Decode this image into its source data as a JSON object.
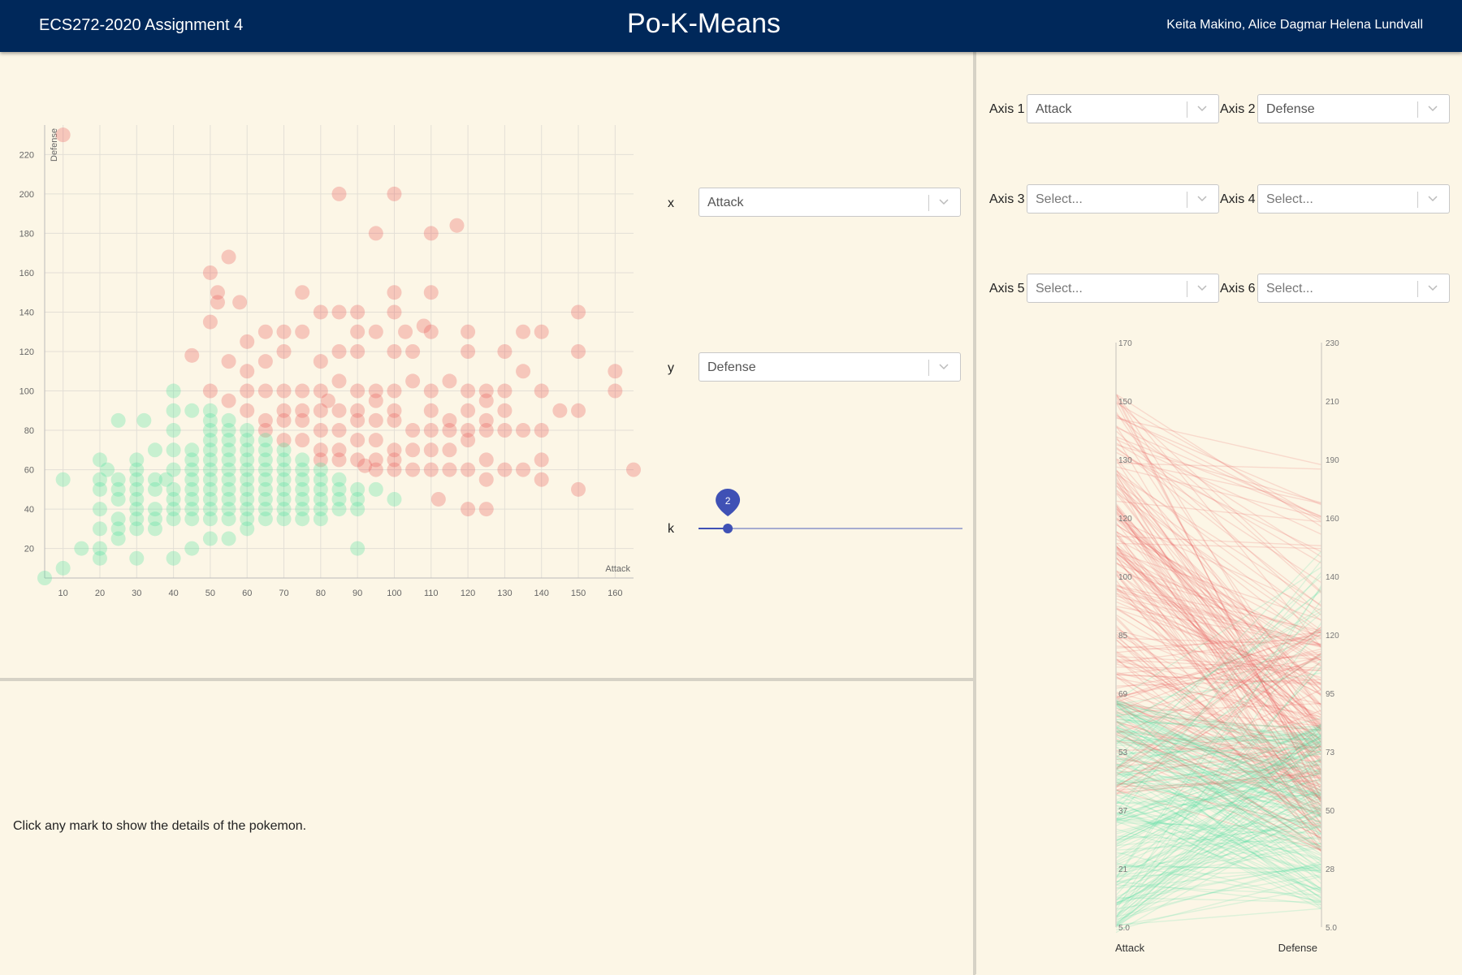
{
  "header": {
    "course": "ECS272-2020 Assignment 4",
    "title": "Po-K-Means",
    "authors": "Keita Makino, Alice Dagmar Helena Lundvall"
  },
  "controls": {
    "x_label": "x",
    "x_value": "Attack",
    "y_label": "y",
    "y_value": "Defense",
    "k_label": "k",
    "k_value": "2",
    "k_fraction": 0.111
  },
  "axes": [
    {
      "label": "Axis 1",
      "value": "Attack"
    },
    {
      "label": "Axis 2",
      "value": "Defense"
    },
    {
      "label": "Axis 3",
      "value": "Select..."
    },
    {
      "label": "Axis 4",
      "value": "Select..."
    },
    {
      "label": "Axis 5",
      "value": "Select..."
    },
    {
      "label": "Axis 6",
      "value": "Select..."
    }
  ],
  "details": {
    "hint": "Click any mark to show the details of the pokemon."
  },
  "colors": {
    "cluster_a": "#e85b5b",
    "cluster_b": "#4fe0a0",
    "header_bg": "#00285a",
    "slider": "#3f51b5"
  },
  "chart_data": [
    {
      "type": "scatter",
      "title": "",
      "xlabel": "Attack",
      "ylabel": "Defense",
      "xticks": [
        "10",
        "20",
        "30",
        "40",
        "50",
        "60",
        "70",
        "80",
        "90",
        "100",
        "110",
        "120",
        "130",
        "140",
        "150",
        "160"
      ],
      "yticks": [
        "20",
        "40",
        "60",
        "80",
        "100",
        "120",
        "140",
        "160",
        "180",
        "200",
        "220"
      ],
      "xlim": [
        5,
        165
      ],
      "ylim": [
        5,
        235
      ],
      "series": [
        {
          "name": "cluster 1",
          "color": "#e85b5b",
          "points": [
            [
              10,
              230
            ],
            [
              85,
              200
            ],
            [
              100,
              200
            ],
            [
              95,
              180
            ],
            [
              110,
              180
            ],
            [
              117,
              184
            ],
            [
              55,
              168
            ],
            [
              50,
              160
            ],
            [
              52,
              150
            ],
            [
              52,
              145
            ],
            [
              58,
              145
            ],
            [
              75,
              150
            ],
            [
              100,
              150
            ],
            [
              110,
              150
            ],
            [
              50,
              135
            ],
            [
              45,
              118
            ],
            [
              60,
              125
            ],
            [
              65,
              130
            ],
            [
              70,
              130
            ],
            [
              75,
              130
            ],
            [
              80,
              140
            ],
            [
              85,
              140
            ],
            [
              90,
              140
            ],
            [
              90,
              130
            ],
            [
              95,
              130
            ],
            [
              100,
              140
            ],
            [
              103,
              130
            ],
            [
              108,
              133
            ],
            [
              110,
              130
            ],
            [
              120,
              130
            ],
            [
              135,
              130
            ],
            [
              140,
              130
            ],
            [
              150,
              140
            ],
            [
              150,
              120
            ],
            [
              130,
              120
            ],
            [
              120,
              120
            ],
            [
              105,
              120
            ],
            [
              100,
              120
            ],
            [
              90,
              120
            ],
            [
              85,
              120
            ],
            [
              80,
              115
            ],
            [
              70,
              120
            ],
            [
              65,
              115
            ],
            [
              60,
              110
            ],
            [
              55,
              115
            ],
            [
              50,
              100
            ],
            [
              55,
              95
            ],
            [
              60,
              100
            ],
            [
              65,
              100
            ],
            [
              70,
              100
            ],
            [
              75,
              100
            ],
            [
              80,
              100
            ],
            [
              82,
              95
            ],
            [
              85,
              105
            ],
            [
              90,
              100
            ],
            [
              95,
              100
            ],
            [
              100,
              100
            ],
            [
              105,
              105
            ],
            [
              110,
              100
            ],
            [
              115,
              105
            ],
            [
              120,
              100
            ],
            [
              125,
              100
            ],
            [
              130,
              100
            ],
            [
              135,
              110
            ],
            [
              140,
              100
            ],
            [
              145,
              90
            ],
            [
              150,
              90
            ],
            [
              160,
              100
            ],
            [
              160,
              110
            ],
            [
              165,
              60
            ],
            [
              125,
              95
            ],
            [
              120,
              90
            ],
            [
              115,
              85
            ],
            [
              110,
              90
            ],
            [
              100,
              90
            ],
            [
              95,
              95
            ],
            [
              90,
              90
            ],
            [
              85,
              90
            ],
            [
              80,
              90
            ],
            [
              75,
              90
            ],
            [
              70,
              90
            ],
            [
              65,
              85
            ],
            [
              60,
              90
            ],
            [
              70,
              85
            ],
            [
              75,
              85
            ],
            [
              80,
              80
            ],
            [
              85,
              80
            ],
            [
              90,
              85
            ],
            [
              95,
              85
            ],
            [
              100,
              85
            ],
            [
              105,
              80
            ],
            [
              110,
              80
            ],
            [
              115,
              80
            ],
            [
              120,
              80
            ],
            [
              125,
              80
            ],
            [
              130,
              80
            ],
            [
              135,
              80
            ],
            [
              140,
              80
            ],
            [
              130,
              90
            ],
            [
              125,
              85
            ],
            [
              120,
              75
            ],
            [
              115,
              70
            ],
            [
              110,
              70
            ],
            [
              105,
              70
            ],
            [
              100,
              70
            ],
            [
              95,
              75
            ],
            [
              90,
              75
            ],
            [
              85,
              70
            ],
            [
              80,
              70
            ],
            [
              75,
              75
            ],
            [
              70,
              75
            ],
            [
              65,
              80
            ],
            [
              100,
              65
            ],
            [
              95,
              65
            ],
            [
              90,
              65
            ],
            [
              85,
              65
            ],
            [
              80,
              65
            ],
            [
              105,
              60
            ],
            [
              110,
              60
            ],
            [
              115,
              60
            ],
            [
              120,
              60
            ],
            [
              125,
              65
            ],
            [
              130,
              60
            ],
            [
              135,
              60
            ],
            [
              140,
              65
            ],
            [
              140,
              55
            ],
            [
              150,
              50
            ],
            [
              125,
              55
            ],
            [
              120,
              40
            ],
            [
              125,
              40
            ],
            [
              112,
              45
            ],
            [
              100,
              60
            ],
            [
              95,
              60
            ],
            [
              92,
              62
            ]
          ]
        },
        {
          "name": "cluster 2",
          "color": "#4fe0a0",
          "points": [
            [
              5,
              5
            ],
            [
              10,
              10
            ],
            [
              10,
              55
            ],
            [
              15,
              20
            ],
            [
              20,
              15
            ],
            [
              20,
              30
            ],
            [
              20,
              40
            ],
            [
              20,
              50
            ],
            [
              20,
              55
            ],
            [
              20,
              65
            ],
            [
              22,
              60
            ],
            [
              25,
              25
            ],
            [
              25,
              30
            ],
            [
              25,
              35
            ],
            [
              25,
              45
            ],
            [
              25,
              50
            ],
            [
              25,
              55
            ],
            [
              30,
              15
            ],
            [
              30,
              30
            ],
            [
              30,
              35
            ],
            [
              30,
              40
            ],
            [
              30,
              45
            ],
            [
              30,
              50
            ],
            [
              30,
              55
            ],
            [
              30,
              60
            ],
            [
              30,
              65
            ],
            [
              35,
              30
            ],
            [
              35,
              35
            ],
            [
              35,
              40
            ],
            [
              35,
              50
            ],
            [
              35,
              55
            ],
            [
              35,
              70
            ],
            [
              40,
              15
            ],
            [
              40,
              35
            ],
            [
              40,
              40
            ],
            [
              40,
              45
            ],
            [
              40,
              50
            ],
            [
              40,
              60
            ],
            [
              40,
              70
            ],
            [
              40,
              80
            ],
            [
              40,
              90
            ],
            [
              40,
              100
            ],
            [
              45,
              20
            ],
            [
              45,
              35
            ],
            [
              45,
              40
            ],
            [
              45,
              45
            ],
            [
              45,
              50
            ],
            [
              45,
              55
            ],
            [
              45,
              60
            ],
            [
              45,
              65
            ],
            [
              45,
              70
            ],
            [
              45,
              90
            ],
            [
              50,
              25
            ],
            [
              50,
              35
            ],
            [
              50,
              40
            ],
            [
              50,
              45
            ],
            [
              50,
              50
            ],
            [
              50,
              55
            ],
            [
              50,
              60
            ],
            [
              50,
              65
            ],
            [
              50,
              70
            ],
            [
              50,
              75
            ],
            [
              50,
              80
            ],
            [
              50,
              85
            ],
            [
              50,
              90
            ],
            [
              55,
              25
            ],
            [
              55,
              35
            ],
            [
              55,
              40
            ],
            [
              55,
              45
            ],
            [
              55,
              50
            ],
            [
              55,
              55
            ],
            [
              55,
              60
            ],
            [
              55,
              65
            ],
            [
              55,
              70
            ],
            [
              55,
              75
            ],
            [
              55,
              80
            ],
            [
              55,
              85
            ],
            [
              60,
              30
            ],
            [
              60,
              35
            ],
            [
              60,
              40
            ],
            [
              60,
              45
            ],
            [
              60,
              50
            ],
            [
              60,
              55
            ],
            [
              60,
              60
            ],
            [
              60,
              65
            ],
            [
              60,
              70
            ],
            [
              60,
              75
            ],
            [
              60,
              80
            ],
            [
              65,
              35
            ],
            [
              65,
              40
            ],
            [
              65,
              45
            ],
            [
              65,
              50
            ],
            [
              65,
              55
            ],
            [
              65,
              60
            ],
            [
              65,
              65
            ],
            [
              65,
              70
            ],
            [
              65,
              75
            ],
            [
              70,
              35
            ],
            [
              70,
              40
            ],
            [
              70,
              45
            ],
            [
              70,
              50
            ],
            [
              70,
              55
            ],
            [
              70,
              60
            ],
            [
              70,
              65
            ],
            [
              70,
              70
            ],
            [
              75,
              35
            ],
            [
              75,
              40
            ],
            [
              75,
              45
            ],
            [
              75,
              50
            ],
            [
              75,
              55
            ],
            [
              75,
              60
            ],
            [
              75,
              65
            ],
            [
              80,
              35
            ],
            [
              80,
              40
            ],
            [
              80,
              45
            ],
            [
              80,
              50
            ],
            [
              80,
              55
            ],
            [
              80,
              60
            ],
            [
              85,
              40
            ],
            [
              85,
              45
            ],
            [
              85,
              50
            ],
            [
              85,
              55
            ],
            [
              90,
              20
            ],
            [
              90,
              40
            ],
            [
              90,
              45
            ],
            [
              90,
              50
            ],
            [
              95,
              50
            ],
            [
              100,
              45
            ],
            [
              20,
              20
            ],
            [
              25,
              85
            ],
            [
              32,
              85
            ],
            [
              38,
              55
            ]
          ]
        }
      ]
    },
    {
      "type": "parallel",
      "axes": [
        "Attack",
        "Defense"
      ],
      "axis1_ticks": [
        "170",
        "150",
        "130",
        "120",
        "100",
        "85",
        "69",
        "53",
        "37",
        "21",
        "5.0"
      ],
      "axis2_ticks": [
        "230",
        "210",
        "190",
        "160",
        "140",
        "120",
        "95",
        "73",
        "50",
        "28",
        "5.0"
      ],
      "axis1_range": [
        5,
        170
      ],
      "axis2_range": [
        5,
        230
      ]
    }
  ]
}
